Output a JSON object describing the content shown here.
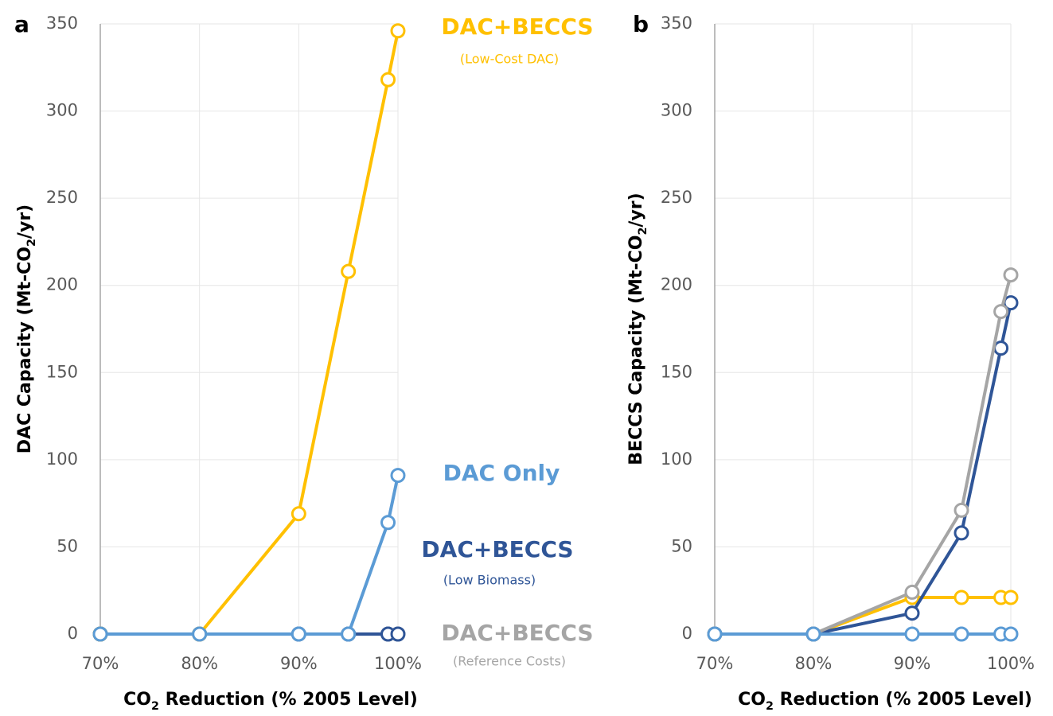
{
  "chart_data": [
    {
      "type": "line",
      "panel": "a",
      "ylabel": [
        "DAC Capacity (Mt-CO",
        "2",
        "/yr)"
      ],
      "xlabel": [
        "CO",
        "2",
        " Reduction (% 2005 Level)"
      ],
      "x": [
        70,
        80,
        90,
        95,
        99,
        100
      ],
      "xlim": [
        70,
        100
      ],
      "xticks": [
        {
          "value": 70,
          "label": "70%"
        },
        {
          "value": 80,
          "label": "80%"
        },
        {
          "value": 90,
          "label": "90%"
        },
        {
          "value": 100,
          "label": "100%"
        }
      ],
      "ylim": [
        0,
        350
      ],
      "yticks": [
        0,
        50,
        100,
        150,
        200,
        250,
        300,
        350
      ],
      "grid": true,
      "series": [
        {
          "name": "DAC+BECCS",
          "note": "(Reference Costs)",
          "color": "#a5a5a5",
          "values": [
            0,
            0,
            0,
            0,
            0,
            0
          ]
        },
        {
          "name": "DAC+BECCS",
          "note": "(Low Biomass)",
          "color": "#2f5597",
          "values": [
            0,
            0,
            0,
            0,
            0,
            0
          ]
        },
        {
          "name": "DAC+BECCS",
          "note": "(Low-Cost DAC)",
          "color": "#ffc000",
          "values": [
            0,
            0,
            69,
            208,
            318,
            346
          ]
        },
        {
          "name": "DAC Only",
          "color": "#5b9bd5",
          "values": [
            0,
            0,
            0,
            0,
            64,
            91
          ]
        }
      ]
    },
    {
      "type": "line",
      "panel": "b",
      "ylabel": [
        "BECCS Capacity (Mt-CO",
        "2",
        "/yr)"
      ],
      "xlabel": [
        "CO",
        "2",
        " Reduction (% 2005 Level)"
      ],
      "x": [
        70,
        80,
        90,
        95,
        99,
        100
      ],
      "xlim": [
        70,
        100
      ],
      "xticks": [
        {
          "value": 70,
          "label": "70%"
        },
        {
          "value": 80,
          "label": "80%"
        },
        {
          "value": 90,
          "label": "90%"
        },
        {
          "value": 100,
          "label": "100%"
        }
      ],
      "ylim": [
        0,
        350
      ],
      "yticks": [
        0,
        50,
        100,
        150,
        200,
        250,
        300,
        350
      ],
      "grid": true,
      "series": [
        {
          "color": "#ffc000",
          "values": [
            0,
            0,
            21,
            21,
            21,
            21
          ]
        },
        {
          "color": "#2f5597",
          "values": [
            0,
            0,
            12,
            58,
            164,
            190
          ]
        },
        {
          "color": "#a5a5a5",
          "values": [
            0,
            0,
            24,
            71,
            185,
            206
          ]
        },
        {
          "color": "#5b9bd5",
          "values": [
            0,
            0,
            0,
            0,
            0,
            0
          ]
        }
      ]
    }
  ]
}
